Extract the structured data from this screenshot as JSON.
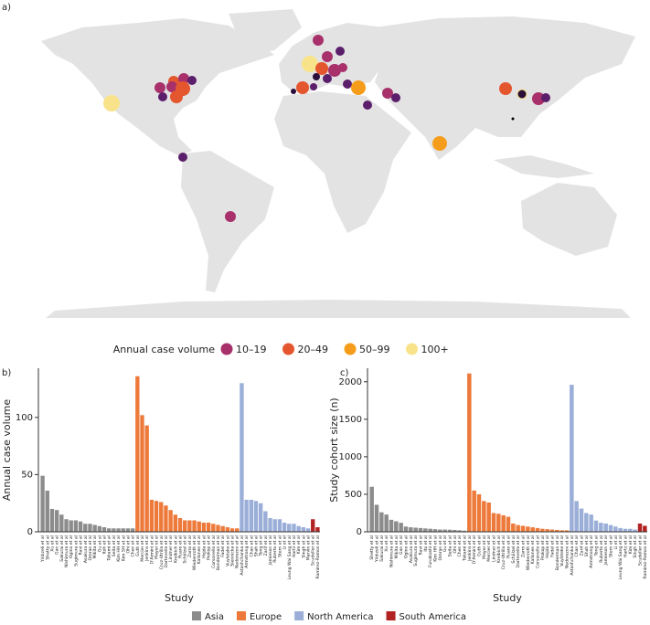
{
  "panel_labels": [
    "a)",
    "b)",
    "c)"
  ],
  "map": {
    "legend_title": "Annual case volume",
    "legend": [
      {
        "label": "10–19",
        "color": "#a8306b"
      },
      {
        "label": "20–49",
        "color": "#e4572e"
      },
      {
        "label": "50–99",
        "color": "#f59d1a"
      },
      {
        "label": "100+",
        "color": "#f9e38a"
      }
    ]
  },
  "regions": [
    {
      "name": "Asia",
      "color": "#8c8c8c"
    },
    {
      "name": "Europe",
      "color": "#ed7a3a"
    },
    {
      "name": "North America",
      "color": "#9aaed8"
    },
    {
      "name": "South America",
      "color": "#b22222"
    }
  ],
  "chart_data": [
    {
      "type": "bar",
      "xlabel": "Study",
      "ylabel": "Annual case volume",
      "ylim": [
        0,
        143
      ],
      "yticks": [
        0,
        50,
        100
      ],
      "series": [
        {
          "categories": [
            "Yıldızeli et al",
            "Shetty et al",
            "Xu et al",
            "Gan et al",
            "Sakurai et al",
            "Nishimura et al",
            "Ogino et al",
            "Sugimura et al",
            "Ravi et al",
            "Asakura et al",
            "Omran et al",
            "Mikita et al",
            "Gu et al",
            "Itoh et al",
            "Takami et al",
            "Seita et al",
            "Kim HH et al",
            "Kim SH et al",
            "Ohi et al",
            "Chen et al"
          ],
          "values": [
            49,
            36,
            20,
            19,
            15,
            11,
            10,
            10,
            9,
            7,
            7,
            6,
            5,
            4,
            3,
            3,
            3,
            3,
            3,
            3
          ]
        },
        {
          "categories": [
            "Guth et al",
            "Mercier et al",
            "Jenkins et al",
            "D'Armini et al",
            "Mayer et al",
            "Cruz-Utrilla et al",
            "Dartevelle et al",
            "Lindner et al",
            "Kreibich et al",
            "Ruaro et al",
            "Schölzel et al",
            "Zarro et al",
            "Wiedenroth et al",
            "Kallonen et al",
            "Hojda et al",
            "Prokop et al",
            "Corsonello et al",
            "Bonderman et al",
            "Fadel et al",
            "Vuylsteke et al",
            "Siennicka et al",
            "Nedorezov et al"
          ],
          "values": [
            136,
            102,
            93,
            28,
            27,
            26,
            23,
            19,
            15,
            12,
            10,
            10,
            10,
            9,
            8,
            8,
            7,
            6,
            5,
            4,
            3,
            3
          ]
        },
        {
          "categories": [
            "Astashchanka et al",
            "Armstrong et al",
            "Chan et al",
            "Shah et al",
            "Tong et al",
            "Zarif et al",
            "Jamieson et al",
            "Ruberto et al",
            "Stern et al",
            "Li et al",
            "Leung Wai Sang et al",
            "Hartz et al",
            "Kim et al",
            "Singh et al",
            "Marvin et al"
          ],
          "values": [
            130,
            28,
            28,
            27,
            25,
            18,
            12,
            11,
            11,
            8,
            7,
            7,
            5,
            4,
            3
          ]
        },
        {
          "categories": [
            "Scudeller et al",
            "Ramirez-Ramos et al"
          ],
          "values": [
            11,
            4
          ]
        }
      ]
    },
    {
      "type": "bar",
      "xlabel": "Study",
      "ylabel": "Study cohort size (n)",
      "ylim": [
        0,
        2180
      ],
      "yticks": [
        0,
        500,
        1000,
        1500,
        2000
      ],
      "series": [
        {
          "categories": [
            "Shetty et al",
            "Yıldızeli et al",
            "Sakurai et al",
            "Xu et al",
            "Nishimura et al",
            "Mikita et al",
            "Gan et al",
            "Ogino et al",
            "Asakura et al",
            "Sugimura et al",
            "Ravi et al",
            "Ito et al",
            "Funabashi et al",
            "Kim HH et al",
            "Omran et al",
            "Gu et al",
            "Seita et al",
            "Ohi et al",
            "Chen et al",
            "Takami et al"
          ],
          "values": [
            600,
            360,
            260,
            230,
            160,
            140,
            120,
            70,
            60,
            55,
            50,
            45,
            40,
            35,
            30,
            30,
            28,
            25,
            20,
            15
          ]
        },
        {
          "categories": [
            "Jenkins et al",
            "D'Armini et al",
            "Guth et al",
            "Mayer et al",
            "Mercier et al",
            "Lindner et al",
            "Kreibich et al",
            "Cruz-Utrilla et al",
            "Ruaro et al",
            "Schölzel et al",
            "Dartevelle et al",
            "Zarro et al",
            "Wiedenroth et al",
            "Kallonen et al",
            "Corsonello et al",
            "Prokop et al",
            "Hojda et al",
            "Fadel et al",
            "Bonderman et al",
            "Vuylsteke et al",
            "Nedorezov et al"
          ],
          "values": [
            2110,
            550,
            500,
            410,
            390,
            250,
            240,
            220,
            200,
            110,
            90,
            80,
            70,
            60,
            50,
            40,
            35,
            30,
            25,
            20,
            20
          ]
        },
        {
          "categories": [
            "Astashchanka et al",
            "Chan et al",
            "Zarif et al",
            "Shah et al",
            "Armstrong et al",
            "Tong et al",
            "Ruberto et al",
            "Jamieson et al",
            "Stern et al",
            "Li et al",
            "Leung Wai Sang et al",
            "Hartz et al",
            "Kim et al",
            "Singh et al"
          ],
          "values": [
            1960,
            410,
            310,
            250,
            230,
            150,
            120,
            110,
            90,
            70,
            50,
            40,
            40,
            30
          ]
        },
        {
          "categories": [
            "Scudeller et al",
            "Ramirez-Ramos et al"
          ],
          "values": [
            110,
            80
          ]
        }
      ]
    }
  ]
}
